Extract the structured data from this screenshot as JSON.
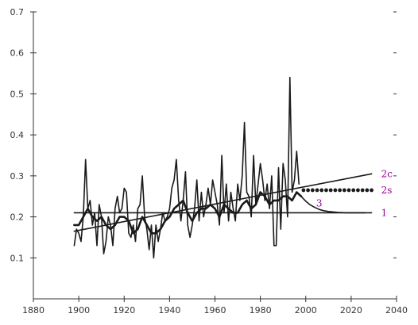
{
  "chart_data": {
    "type": "line",
    "title": "",
    "xlabel": "",
    "ylabel": "",
    "xlim": [
      1880,
      2040
    ],
    "ylim": [
      0,
      0.7
    ],
    "grid": false,
    "legend": "none",
    "x_ticks": [
      "1880",
      "1900",
      "1920",
      "1940",
      "1960",
      "1980",
      "2000",
      "2020",
      "2040"
    ],
    "y_ticks": [
      "0.1",
      "0.2",
      "0.3",
      "0.4",
      "0.5",
      "0.6",
      "0.7"
    ],
    "series": [
      {
        "label_on_chart": "",
        "style": "thin-solid",
        "x": [
          1898,
          1899,
          1900,
          1901,
          1902,
          1903,
          1904,
          1905,
          1906,
          1907,
          1908,
          1909,
          1910,
          1911,
          1912,
          1913,
          1914,
          1915,
          1916,
          1917,
          1918,
          1919,
          1920,
          1921,
          1922,
          1923,
          1924,
          1925,
          1926,
          1927,
          1928,
          1929,
          1930,
          1931,
          1932,
          1933,
          1934,
          1935,
          1936,
          1937,
          1938,
          1939,
          1940,
          1941,
          1942,
          1943,
          1944,
          1945,
          1946,
          1947,
          1948,
          1949,
          1950,
          1951,
          1952,
          1953,
          1954,
          1955,
          1956,
          1957,
          1958,
          1959,
          1960,
          1961,
          1962,
          1963,
          1964,
          1965,
          1966,
          1967,
          1968,
          1969,
          1970,
          1971,
          1972,
          1973,
          1974,
          1975,
          1976,
          1977,
          1978,
          1979,
          1980,
          1981,
          1982,
          1983,
          1984,
          1985,
          1986,
          1987,
          1988,
          1989,
          1990,
          1991,
          1992,
          1993,
          1994,
          1995,
          1996,
          1997
        ],
        "values": [
          0.13,
          0.17,
          0.16,
          0.14,
          0.2,
          0.34,
          0.22,
          0.24,
          0.18,
          0.21,
          0.13,
          0.23,
          0.2,
          0.11,
          0.14,
          0.2,
          0.18,
          0.13,
          0.22,
          0.25,
          0.21,
          0.22,
          0.27,
          0.26,
          0.16,
          0.15,
          0.18,
          0.14,
          0.22,
          0.23,
          0.3,
          0.2,
          0.17,
          0.12,
          0.18,
          0.1,
          0.18,
          0.14,
          0.17,
          0.21,
          0.19,
          0.2,
          0.22,
          0.27,
          0.29,
          0.34,
          0.24,
          0.19,
          0.24,
          0.31,
          0.18,
          0.15,
          0.18,
          0.22,
          0.29,
          0.19,
          0.26,
          0.2,
          0.23,
          0.27,
          0.23,
          0.29,
          0.26,
          0.23,
          0.18,
          0.35,
          0.21,
          0.28,
          0.19,
          0.26,
          0.22,
          0.19,
          0.28,
          0.24,
          0.3,
          0.43,
          0.26,
          0.25,
          0.2,
          0.35,
          0.23,
          0.28,
          0.33,
          0.29,
          0.24,
          0.28,
          0.22,
          0.3,
          0.13,
          0.13,
          0.32,
          0.17,
          0.33,
          0.29,
          0.2,
          0.54,
          0.26,
          0.29,
          0.36,
          0.28
        ]
      },
      {
        "label_on_chart": "",
        "style": "thick-solid-smoothed",
        "x": [
          1898,
          1900,
          1902,
          1904,
          1906,
          1908,
          1910,
          1912,
          1914,
          1916,
          1918,
          1920,
          1922,
          1924,
          1926,
          1928,
          1930,
          1932,
          1934,
          1936,
          1938,
          1940,
          1942,
          1944,
          1946,
          1948,
          1950,
          1952,
          1954,
          1956,
          1958,
          1960,
          1962,
          1964,
          1966,
          1968,
          1970,
          1972,
          1974,
          1976,
          1978,
          1980,
          1982,
          1984,
          1986,
          1988,
          1990,
          1992,
          1994,
          1996,
          1998
        ],
        "values": [
          0.18,
          0.18,
          0.2,
          0.22,
          0.2,
          0.19,
          0.2,
          0.18,
          0.17,
          0.18,
          0.2,
          0.2,
          0.19,
          0.16,
          0.17,
          0.2,
          0.18,
          0.16,
          0.16,
          0.17,
          0.19,
          0.2,
          0.22,
          0.23,
          0.24,
          0.21,
          0.19,
          0.21,
          0.22,
          0.22,
          0.23,
          0.22,
          0.2,
          0.23,
          0.22,
          0.21,
          0.21,
          0.23,
          0.24,
          0.22,
          0.23,
          0.26,
          0.25,
          0.23,
          0.24,
          0.24,
          0.25,
          0.25,
          0.24,
          0.26,
          0.25
        ]
      },
      {
        "label_on_chart": "1",
        "style": "thin-solid",
        "x": [
          1898,
          2029
        ],
        "values": [
          0.21,
          0.21
        ]
      },
      {
        "label_on_chart": "2c",
        "style": "thin-solid",
        "x": [
          1898,
          2029
        ],
        "values": [
          0.165,
          0.305
        ]
      },
      {
        "label_on_chart": "2s",
        "style": "dotted",
        "x": [
          1999,
          2001,
          2003,
          2005,
          2007,
          2009,
          2011,
          2013,
          2015,
          2017,
          2019,
          2021,
          2023,
          2025,
          2027,
          2029
        ],
        "values": [
          0.265,
          0.265,
          0.265,
          0.265,
          0.265,
          0.265,
          0.265,
          0.265,
          0.265,
          0.265,
          0.265,
          0.265,
          0.265,
          0.265,
          0.265,
          0.265
        ]
      },
      {
        "label_on_chart": "3",
        "style": "thin-solid",
        "x": [
          1998,
          2000,
          2002,
          2004,
          2006,
          2008,
          2010,
          2014,
          2018,
          2022,
          2026
        ],
        "values": [
          0.25,
          0.238,
          0.229,
          0.223,
          0.218,
          0.215,
          0.213,
          0.211,
          0.21,
          0.21,
          0.21
        ]
      }
    ],
    "colors": {
      "data": "#1a1a1a",
      "axis": "#333333",
      "label": "#990099",
      "plot_background": "#ffffff"
    }
  }
}
